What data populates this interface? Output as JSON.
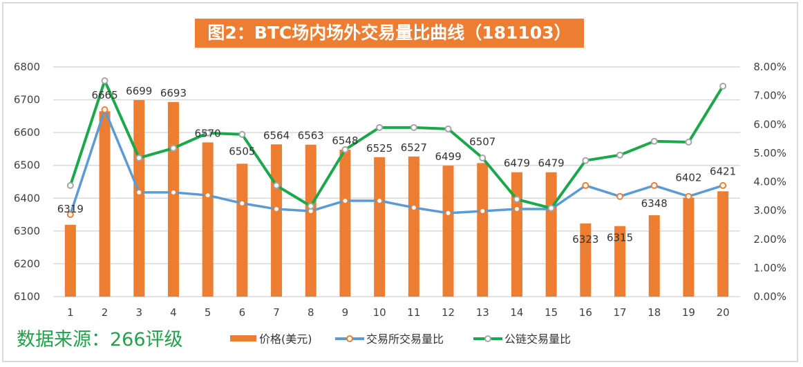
{
  "title": "图2：BTC场内场外交易量比曲线（181103）",
  "source": "数据来源：266评级",
  "chart_data": {
    "type": "bar+line",
    "title": "图2：BTC场内场外交易量比曲线（181103）",
    "categories": [
      "1",
      "2",
      "3",
      "4",
      "5",
      "6",
      "7",
      "8",
      "9",
      "10",
      "11",
      "12",
      "13",
      "14",
      "15",
      "16",
      "17",
      "18",
      "19",
      "20"
    ],
    "y_left": {
      "range": [
        6100,
        6800
      ],
      "ticks": [
        "6100",
        "6200",
        "6300",
        "6400",
        "6500",
        "6600",
        "6700",
        "6800"
      ]
    },
    "y_right": {
      "range": [
        0,
        8
      ],
      "ticks": [
        "0.00%",
        "1.00%",
        "2.00%",
        "3.00%",
        "4.00%",
        "5.00%",
        "6.00%",
        "7.00%",
        "8.00%"
      ]
    },
    "grid": true,
    "legend_position": "bottom",
    "series": [
      {
        "name": "价格(美元)",
        "type": "bar",
        "axis": "left",
        "color": "#ed7d31",
        "values": [
          6319,
          6665,
          6699,
          6693,
          6570,
          6505,
          6564,
          6563,
          6548,
          6525,
          6527,
          6499,
          6507,
          6479,
          6479,
          6323,
          6315,
          6348,
          6402,
          6421
        ]
      },
      {
        "name": "交易所交易量比",
        "type": "line",
        "axis": "right",
        "unit": "%",
        "color": "#5b9bd5",
        "marker": "#ed7d31",
        "values": [
          2.86,
          6.51,
          3.63,
          3.63,
          3.53,
          3.25,
          3.05,
          2.98,
          3.34,
          3.34,
          3.1,
          2.91,
          2.98,
          3.05,
          3.05,
          3.87,
          3.49,
          3.87,
          3.49,
          3.87
        ]
      },
      {
        "name": "公链交易量比",
        "type": "line",
        "axis": "right",
        "unit": "%",
        "color": "#1aa84a",
        "marker": "#a5a5a5",
        "values": [
          3.87,
          7.52,
          4.83,
          5.17,
          5.7,
          5.65,
          3.87,
          3.15,
          5.12,
          5.89,
          5.89,
          5.84,
          4.83,
          3.39,
          3.08,
          4.74,
          4.93,
          5.41,
          5.38,
          7.33
        ]
      }
    ]
  }
}
